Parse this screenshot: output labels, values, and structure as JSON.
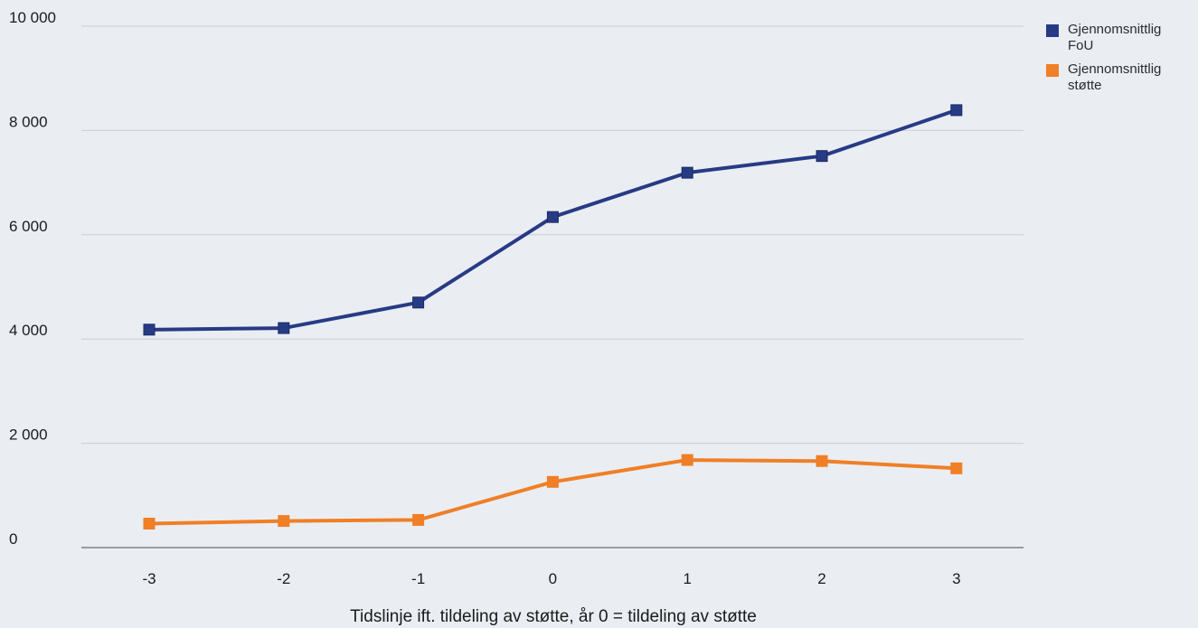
{
  "chart_data": {
    "type": "line",
    "title": "",
    "xlabel": "Tidslinje ift. tildeling av støtte, år 0 = tildeling av støtte",
    "ylabel": "",
    "x": [
      -3,
      -2,
      -1,
      0,
      1,
      2,
      3
    ],
    "x_tick_labels": [
      "-3",
      "-2",
      "-1",
      "0",
      "1",
      "2",
      "3"
    ],
    "ylim": [
      0,
      10000
    ],
    "y_ticks": [
      0,
      2000,
      4000,
      6000,
      8000,
      10000
    ],
    "y_tick_labels": [
      "0",
      "2 000",
      "4 000",
      "6 000",
      "8 000",
      "10 000"
    ],
    "grid": "horizontal",
    "legend_position": "top-right",
    "series": [
      {
        "name": "Gjennomsnittlig FoU",
        "color": "#273b85",
        "values": [
          4180,
          4210,
          4700,
          6340,
          7190,
          7510,
          8390
        ]
      },
      {
        "name": "Gjennomsnittlig støtte",
        "color": "#f07f26",
        "values": [
          460,
          510,
          530,
          1260,
          1680,
          1660,
          1520
        ]
      }
    ]
  }
}
